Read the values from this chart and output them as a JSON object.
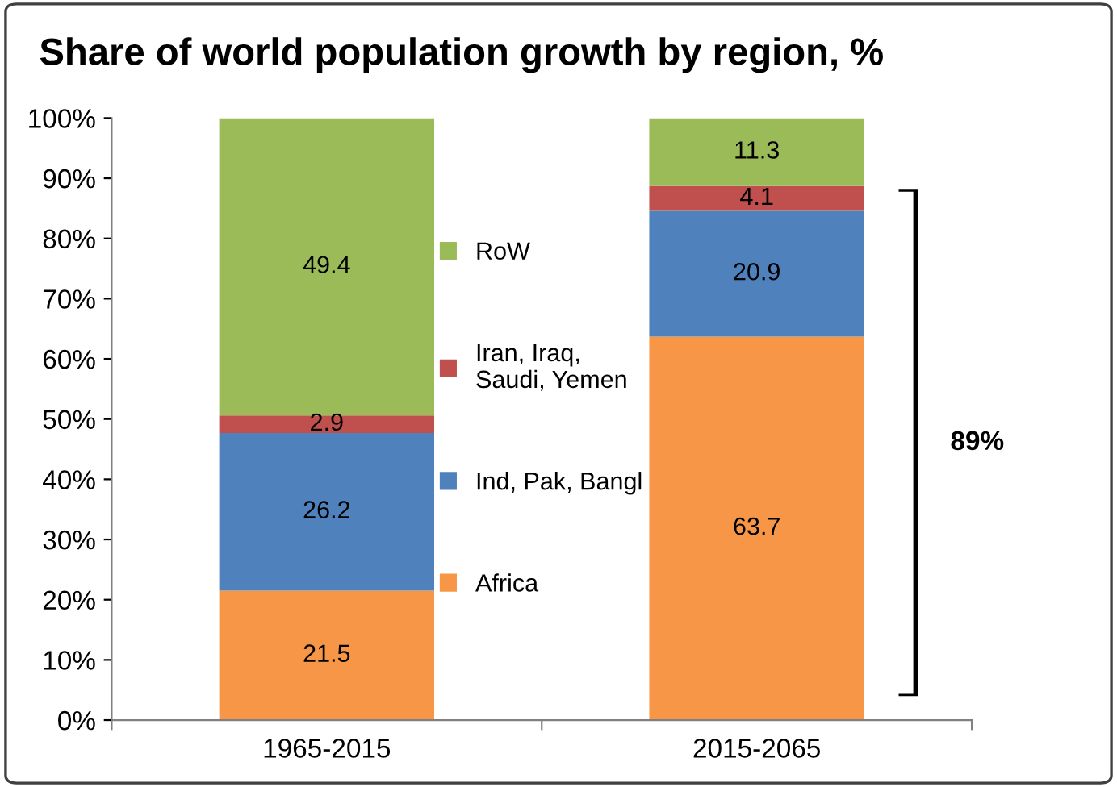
{
  "chart_data": {
    "type": "bar",
    "title": "Share of world population growth by region, %",
    "categories": [
      "1965-2015",
      "2015-2065"
    ],
    "stacked": true,
    "data_labels": true,
    "legend": "center",
    "grid": false,
    "series": [
      {
        "name": "Africa",
        "color": "#f79646",
        "values": [
          21.5,
          63.7
        ]
      },
      {
        "name": "Ind, Pak, Bangl",
        "color": "#4f81bd",
        "values": [
          26.2,
          20.9
        ]
      },
      {
        "name": "Iran, Iraq,\nSaudi, Yemen",
        "color": "#c0504d",
        "values": [
          2.9,
          4.1
        ]
      },
      {
        "name": "RoW",
        "color": "#9bbb59",
        "values": [
          49.4,
          11.3
        ]
      }
    ],
    "ylim": [
      0,
      100
    ],
    "yticks": [
      {
        "value": 0,
        "label": "0%"
      },
      {
        "value": 10,
        "label": "10%"
      },
      {
        "value": 20,
        "label": "20%"
      },
      {
        "value": 30,
        "label": "30%"
      },
      {
        "value": 40,
        "label": "40%"
      },
      {
        "value": 50,
        "label": "50%"
      },
      {
        "value": 60,
        "label": "60%"
      },
      {
        "value": 70,
        "label": "70%"
      },
      {
        "value": 80,
        "label": "80%"
      },
      {
        "value": 90,
        "label": "90%"
      },
      {
        "value": 100,
        "label": "100%"
      }
    ],
    "annotations": [
      "89%"
    ]
  }
}
